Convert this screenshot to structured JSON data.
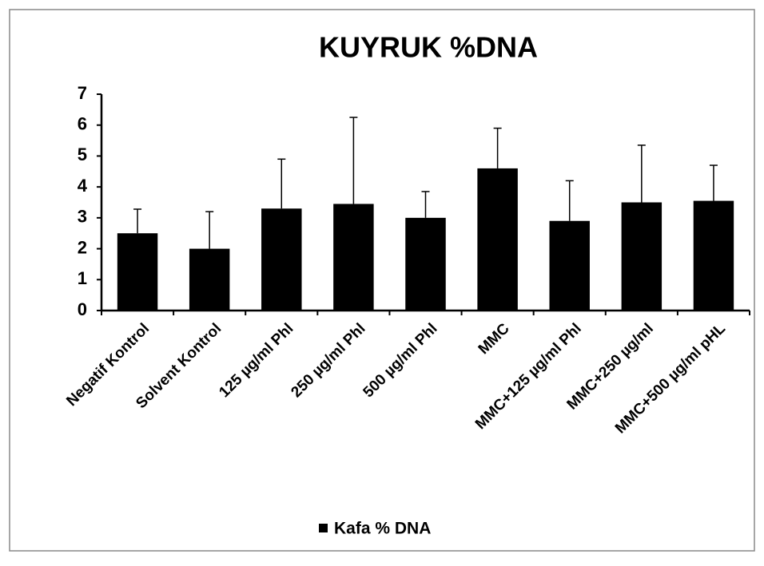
{
  "chart_data": {
    "type": "bar",
    "title": "KUYRUK %DNA",
    "categories": [
      "Negatif Kontrol",
      "Solvent Kontrol",
      "125 µg/ml Phl",
      "250 µg/ml Phl",
      "500 µg/ml Phl",
      "MMC",
      "MMC+125 µg/ml Phl",
      "MMC+250 µg/ml",
      "MMC+500 µg/ml pHL"
    ],
    "series": [
      {
        "name": "Kafa % DNA",
        "color": "#000000",
        "values": [
          2.5,
          2.0,
          3.3,
          3.45,
          3.0,
          4.6,
          2.9,
          3.5,
          3.55
        ],
        "errors": [
          0.78,
          1.2,
          1.6,
          2.8,
          0.85,
          1.3,
          1.3,
          1.85,
          1.15
        ]
      }
    ],
    "ylim": [
      0,
      7
    ],
    "yticks": [
      0,
      1,
      2,
      3,
      4,
      5,
      6,
      7
    ]
  }
}
